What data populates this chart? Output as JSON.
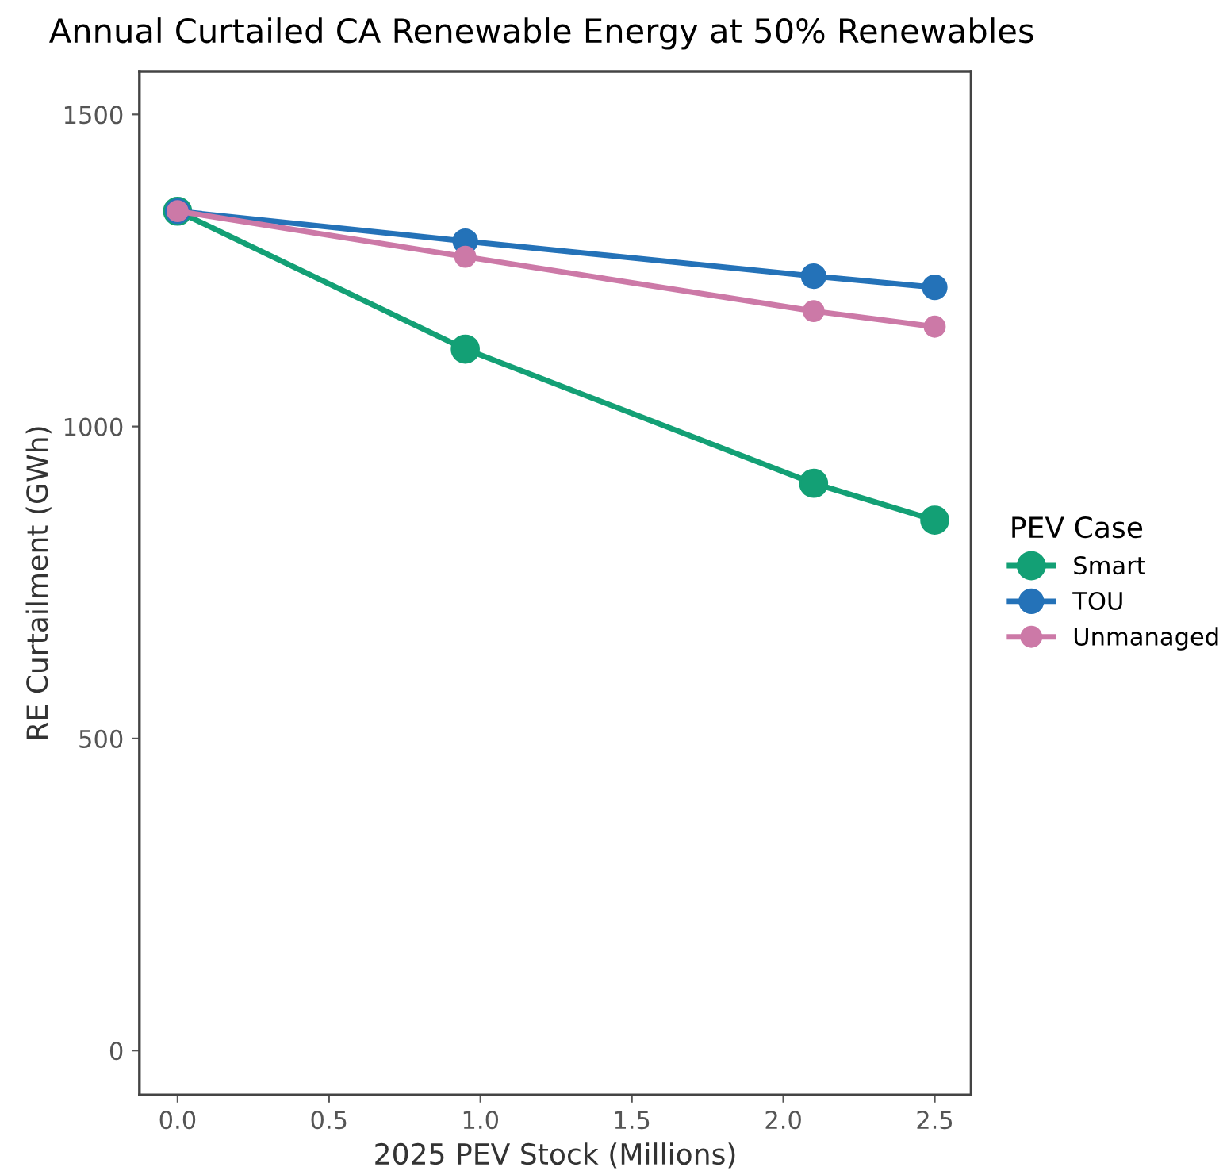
{
  "chart_data": {
    "type": "line",
    "title": "Annual Curtailed CA Renewable Energy at 50% Renewables",
    "xlabel": "2025 PEV Stock (Millions)",
    "ylabel": "RE Curtailment (GWh)",
    "legend_title": "PEV Case",
    "x": [
      0.0,
      0.95,
      2.1,
      2.5
    ],
    "series": [
      {
        "name": "Smart",
        "color": "#13a075",
        "values": [
          1345,
          1124,
          909,
          850
        ]
      },
      {
        "name": "TOU",
        "color": "#2472b8",
        "values": [
          1345,
          1297,
          1241,
          1223
        ]
      },
      {
        "name": "Unmanaged",
        "color": "#cc79a7",
        "values": [
          1345,
          1272,
          1185,
          1160
        ]
      }
    ],
    "xlim": [
      -0.126,
      2.62
    ],
    "ylim": [
      -71,
      1569
    ],
    "xticks": [
      {
        "value": 0,
        "label": "0.0"
      },
      0.5,
      {
        "value": 1,
        "label": "1.0"
      },
      1.5,
      {
        "value": 2,
        "label": "2.0"
      },
      2.5
    ],
    "yticks": [
      0,
      500,
      1000,
      1500
    ],
    "marker": "circle",
    "line_style": "solid",
    "grid": false,
    "legend": "right"
  }
}
